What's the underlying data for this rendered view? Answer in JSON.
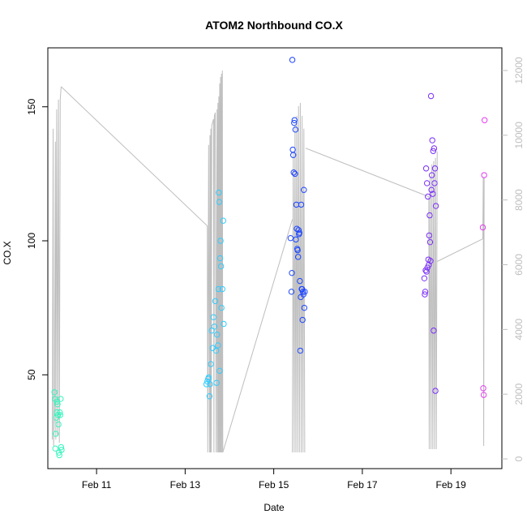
{
  "chart_data": {
    "type": "scatter",
    "title": "ATOM2 Northbound CO.X",
    "xlabel": "Date",
    "ylabel": "CO.X",
    "x_ticks": [
      "Feb 11",
      "Feb 13",
      "Feb 15",
      "Feb 17",
      "Feb 19"
    ],
    "x_tick_days": [
      11,
      13,
      15,
      17,
      19
    ],
    "xlim": [
      9.9,
      20.15
    ],
    "ylim": [
      15,
      172
    ],
    "y_ticks": [
      50,
      100,
      150
    ],
    "y2lim": [
      -300,
      12700
    ],
    "y2_ticks": [
      0,
      2000,
      4000,
      6000,
      8000,
      10000,
      12000
    ],
    "grid": false,
    "legend": "none",
    "colors": {
      "points_early": "#35f5bd",
      "points_feb13": "#33ccff",
      "points_feb15": "#1c45ff",
      "points_feb18": "#7a2dfa",
      "points_feb19": "#e23cf0",
      "secondary_line": "#bebebe",
      "frame": "#000000"
    },
    "series": [
      {
        "marker": "circle",
        "color": "#35f5bd",
        "points": [
          [
            10.05,
            43.5
          ],
          [
            10.06,
            41
          ],
          [
            10.07,
            22.5
          ],
          [
            10.08,
            28
          ],
          [
            10.09,
            34
          ],
          [
            10.1,
            36
          ],
          [
            10.11,
            40
          ],
          [
            10.12,
            39
          ],
          [
            10.13,
            35
          ],
          [
            10.14,
            31.5
          ],
          [
            10.15,
            21
          ],
          [
            10.16,
            20
          ],
          [
            10.17,
            36
          ],
          [
            10.18,
            35
          ],
          [
            10.19,
            41
          ],
          [
            10.2,
            23
          ],
          [
            10.21,
            22
          ]
        ]
      },
      {
        "marker": "circle",
        "color": "#33ccff",
        "points": [
          [
            13.48,
            46.5
          ],
          [
            13.5,
            47.5
          ],
          [
            13.52,
            48.5
          ],
          [
            13.53,
            49
          ],
          [
            13.55,
            42
          ],
          [
            13.56,
            46.5
          ],
          [
            13.58,
            54
          ],
          [
            13.6,
            66.5
          ],
          [
            13.62,
            60
          ],
          [
            13.64,
            71.5
          ],
          [
            13.66,
            68
          ],
          [
            13.68,
            77.5
          ],
          [
            13.7,
            59
          ],
          [
            13.71,
            47
          ],
          [
            13.72,
            65
          ],
          [
            13.74,
            61
          ],
          [
            13.75,
            82
          ],
          [
            13.76,
            118
          ],
          [
            13.77,
            114.5
          ],
          [
            13.78,
            51.5
          ],
          [
            13.79,
            93.5
          ],
          [
            13.8,
            100
          ],
          [
            13.81,
            90.5
          ],
          [
            13.82,
            75
          ],
          [
            13.84,
            82
          ],
          [
            13.86,
            107.5
          ],
          [
            13.87,
            69
          ]
        ]
      },
      {
        "marker": "circle",
        "color": "#1c45ff",
        "points": [
          [
            15.38,
            101
          ],
          [
            15.4,
            81
          ],
          [
            15.41,
            88
          ],
          [
            15.42,
            167.5
          ],
          [
            15.43,
            134
          ],
          [
            15.44,
            132
          ],
          [
            15.45,
            125.5
          ],
          [
            15.46,
            144
          ],
          [
            15.47,
            145
          ],
          [
            15.48,
            125
          ],
          [
            15.49,
            141.5
          ],
          [
            15.5,
            100.5
          ],
          [
            15.51,
            113.5
          ],
          [
            15.52,
            104.5
          ],
          [
            15.53,
            97
          ],
          [
            15.54,
            96.5
          ],
          [
            15.55,
            94
          ],
          [
            15.56,
            104
          ],
          [
            15.57,
            102.5
          ],
          [
            15.58,
            103
          ],
          [
            15.59,
            85
          ],
          [
            15.6,
            59
          ],
          [
            15.61,
            79
          ],
          [
            15.62,
            113.5
          ],
          [
            15.63,
            82
          ],
          [
            15.64,
            82
          ],
          [
            15.65,
            70.5
          ],
          [
            15.66,
            81
          ],
          [
            15.67,
            80
          ],
          [
            15.68,
            119
          ],
          [
            15.69,
            75
          ],
          [
            15.7,
            81
          ]
        ]
      },
      {
        "marker": "circle",
        "color": "#7a2dfa",
        "points": [
          [
            18.4,
            86
          ],
          [
            18.41,
            80
          ],
          [
            18.42,
            81
          ],
          [
            18.43,
            89
          ],
          [
            18.44,
            127
          ],
          [
            18.45,
            88.5
          ],
          [
            18.46,
            121.5
          ],
          [
            18.47,
            90
          ],
          [
            18.48,
            116.5
          ],
          [
            18.49,
            93
          ],
          [
            18.5,
            91
          ],
          [
            18.51,
            102
          ],
          [
            18.52,
            109.5
          ],
          [
            18.53,
            99.5
          ],
          [
            18.54,
            92.5
          ],
          [
            18.55,
            154
          ],
          [
            18.56,
            119
          ],
          [
            18.57,
            124.5
          ],
          [
            18.58,
            137.5
          ],
          [
            18.59,
            117.5
          ],
          [
            18.6,
            133.5
          ],
          [
            18.61,
            66.5
          ],
          [
            18.62,
            134.5
          ],
          [
            18.63,
            121.5
          ],
          [
            18.64,
            127
          ],
          [
            18.65,
            44
          ],
          [
            18.66,
            113
          ]
        ]
      },
      {
        "marker": "circle",
        "color": "#e23cf0",
        "points": [
          [
            19.72,
            105
          ],
          [
            19.73,
            45
          ],
          [
            19.74,
            42.5
          ],
          [
            19.75,
            124.5
          ],
          [
            19.76,
            145
          ]
        ]
      }
    ],
    "secondary_series": {
      "type": "line",
      "axis": "right",
      "color": "#bebebe",
      "segments": [
        {
          "x": [
            10.0,
            10.02,
            10.03,
            10.05,
            10.07,
            10.08,
            10.1,
            10.12,
            10.14,
            10.16,
            10.18,
            10.2
          ],
          "y": [
            600,
            10200,
            400,
            1500,
            9800,
            600,
            10800,
            700,
            11100,
            500,
            11100,
            11500
          ]
        },
        {
          "x": [
            10.2,
            13.5
          ],
          "y": [
            11500,
            7200
          ]
        },
        {
          "x": [
            13.5,
            13.51,
            13.53,
            13.55,
            13.56,
            13.57,
            13.58,
            13.59,
            13.6,
            13.62,
            13.64,
            13.65,
            13.66,
            13.68,
            13.7,
            13.72,
            13.73,
            13.74,
            13.75,
            13.76,
            13.77,
            13.78,
            13.79,
            13.8,
            13.81,
            13.82,
            13.83,
            13.84,
            13.85
          ],
          "y": [
            7200,
            200,
            9700,
            200,
            10000,
            200,
            10200,
            200,
            10300,
            10400,
            10500,
            200,
            10600,
            10700,
            200,
            10800,
            200,
            11000,
            200,
            11200,
            200,
            11600,
            200,
            11800,
            200,
            11900,
            200,
            12000,
            200
          ]
        },
        {
          "x": [
            13.85,
            15.42
          ],
          "y": [
            200,
            7400
          ]
        },
        {
          "x": [
            15.42,
            15.44,
            15.46,
            15.48,
            15.5,
            15.52,
            15.54,
            15.56,
            15.58,
            15.6,
            15.62,
            15.64,
            15.66,
            15.68,
            15.7
          ],
          "y": [
            200,
            9500,
            200,
            10300,
            200,
            10600,
            200,
            10900,
            200,
            11000,
            200,
            10600,
            200,
            10200,
            200
          ]
        },
        {
          "x": [
            15.72,
            18.5
          ],
          "y": [
            9600,
            8100
          ]
        },
        {
          "x": [
            18.5,
            18.51,
            18.53,
            18.55,
            18.57,
            18.59,
            18.61,
            18.63,
            18.65,
            18.67,
            18.69
          ],
          "y": [
            8100,
            300,
            8700,
            300,
            9100,
            300,
            9200,
            300,
            9300,
            300,
            9500
          ]
        },
        {
          "x": [
            18.69,
            19.72
          ],
          "y": [
            6100,
            6800
          ]
        },
        {
          "x": [
            19.72,
            19.73,
            19.74,
            19.75
          ],
          "y": [
            6800,
            8700,
            400,
            8700
          ]
        }
      ]
    }
  }
}
